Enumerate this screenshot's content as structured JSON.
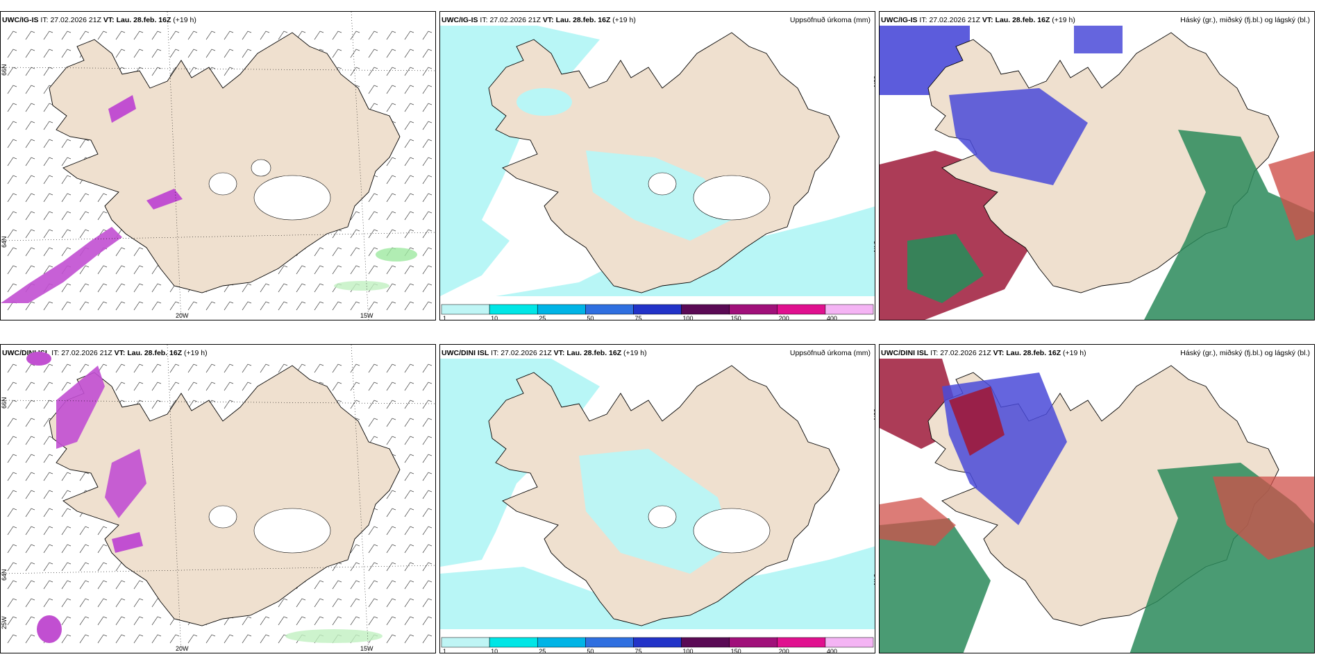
{
  "rows": [
    {
      "model": "UWC/IG-IS",
      "it_label": "IT:",
      "it_value": "27.02.2026 21Z",
      "vt_label": "VT:",
      "vt_value": "Lau. 28.feb. 16Z",
      "lead": "(+19 h)"
    },
    {
      "model": "UWC/DINI ISL",
      "it_label": "IT:",
      "it_value": "27.02.2026 21Z",
      "vt_label": "VT:",
      "vt_value": "Lau. 28.feb. 16Z",
      "lead": "(+19 h)"
    }
  ],
  "panel_titles": {
    "wind": "",
    "precip": "Uppsöfnuð úrkoma (mm)",
    "cloud": "Háský (gr.), miðský (fj.bl.) og lágský (bl.)"
  },
  "axis_labels": {
    "lat_66": "66N",
    "lat_64": "64N",
    "lon_20": "20W",
    "lon_15": "15W",
    "lon_25": "25W"
  },
  "colorbar": {
    "ticks": [
      "1",
      "10",
      "25",
      "50",
      "75",
      "100",
      "150",
      "200",
      "400"
    ],
    "colors": [
      "#bff5f5",
      "#00e6e6",
      "#00b4e6",
      "#2f6fe0",
      "#2233c8",
      "#5a0a55",
      "#a0107a",
      "#e0108f",
      "#f4b4f4"
    ]
  },
  "colors": {
    "land": "#efe0cf",
    "precip_light": "#b8f6f6",
    "wind_precip": "#c14fd1",
    "cloud_high": "#4a4ad8",
    "cloud_mid": "#9e1a3a",
    "cloud_low": "#2a8a5a"
  }
}
